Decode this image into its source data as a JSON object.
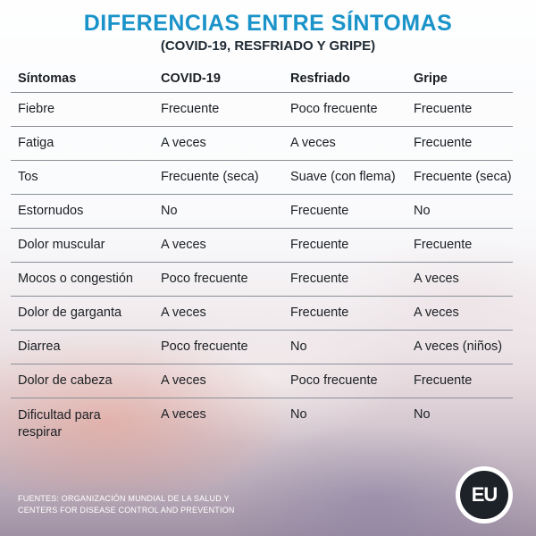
{
  "title": "DIFERENCIAS ENTRE SÍNTOMAS",
  "subtitle": "(COVID-19, RESFRIADO Y GRIPE)",
  "table": {
    "headers": [
      "Síntomas",
      "COVID-19",
      "Resfriado",
      "Gripe"
    ],
    "rows": [
      [
        "Fiebre",
        "Frecuente",
        "Poco frecuente",
        "Frecuente"
      ],
      [
        "Fatiga",
        "A veces",
        "A veces",
        "Frecuente"
      ],
      [
        "Tos",
        "Frecuente (seca)",
        "Suave (con flema)",
        "Frecuente (seca)"
      ],
      [
        "Estornudos",
        "No",
        "Frecuente",
        "No"
      ],
      [
        "Dolor muscular",
        "A veces",
        "Frecuente",
        "Frecuente"
      ],
      [
        "Mocos o congestión",
        "Poco frecuente",
        "Frecuente",
        "A veces"
      ],
      [
        "Dolor de garganta",
        "A veces",
        "Frecuente",
        "A veces"
      ],
      [
        "Diarrea",
        "Poco frecuente",
        "No",
        "A veces (niños)"
      ],
      [
        "Dolor de cabeza",
        "A veces",
        "Poco frecuente",
        "Frecuente"
      ],
      [
        "Dificultad para respirar",
        "A veces",
        "No",
        "No"
      ]
    ]
  },
  "sources": {
    "line1": "FUENTES: ORGANIZACIÓN MUNDIAL DE LA SALUD Y",
    "line2": "CENTERS FOR DISEASE CONTROL AND PREVENTION"
  },
  "logo": {
    "text": "EU"
  },
  "colors": {
    "title": "#1a93c9",
    "text": "#1b1f24",
    "rule": "#8a8f98"
  }
}
